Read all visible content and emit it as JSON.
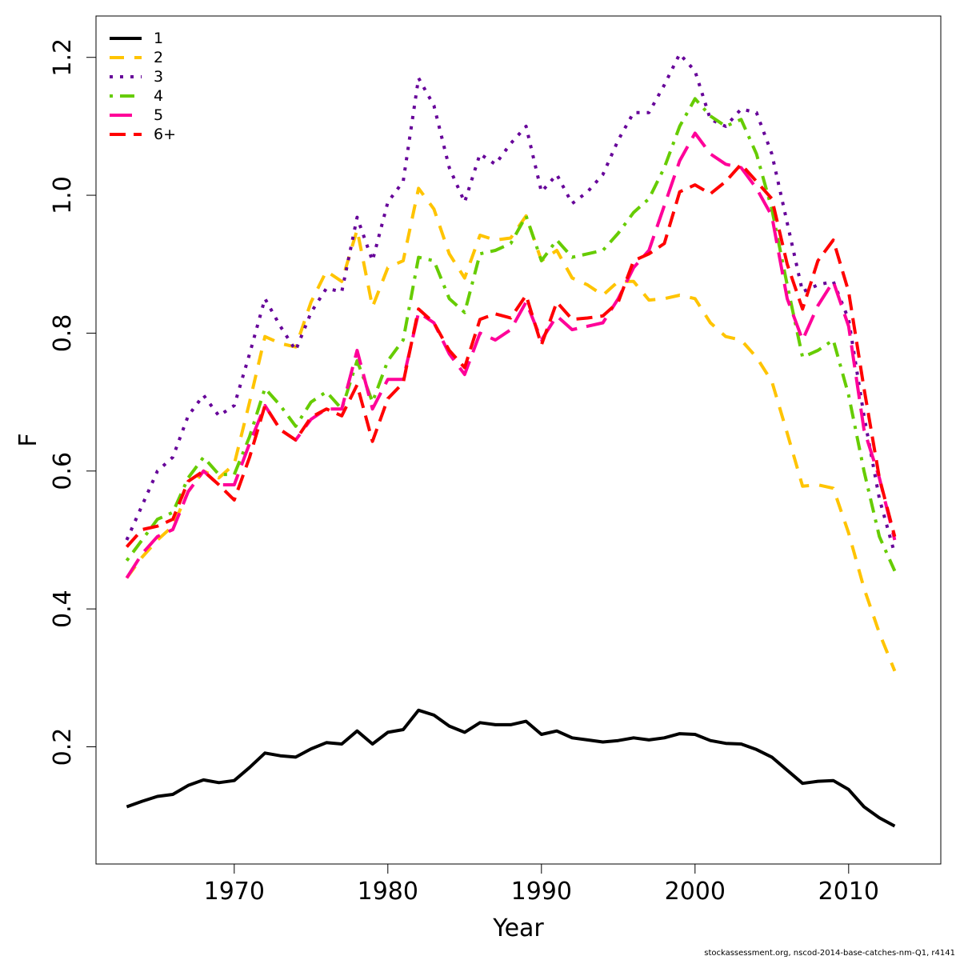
{
  "chart_data": {
    "type": "line",
    "title": "",
    "xlabel": "Year",
    "ylabel": "F",
    "xlim": [
      1961,
      2016
    ],
    "ylim": [
      0.03,
      1.26
    ],
    "xticks": [
      1970,
      1980,
      1990,
      2000,
      2010
    ],
    "yticks": [
      0.2,
      0.4,
      0.6,
      0.8,
      1.0,
      1.2
    ],
    "xtick_labels": [
      "1970",
      "1980",
      "1990",
      "2000",
      "2010"
    ],
    "ytick_labels": [
      "0.2",
      "0.4",
      "0.6",
      "0.8",
      "1.0",
      "1.2"
    ],
    "grid": false,
    "legend_position": "top-left",
    "x": [
      1963,
      1964,
      1965,
      1966,
      1967,
      1968,
      1969,
      1970,
      1971,
      1972,
      1973,
      1974,
      1975,
      1976,
      1977,
      1978,
      1979,
      1980,
      1981,
      1982,
      1983,
      1984,
      1985,
      1986,
      1987,
      1988,
      1989,
      1990,
      1991,
      1992,
      1993,
      1994,
      1995,
      1996,
      1997,
      1998,
      1999,
      2000,
      2001,
      2002,
      2003,
      2004,
      2005,
      2006,
      2007,
      2008,
      2009,
      2010,
      2011,
      2012,
      2013
    ],
    "series": [
      {
        "name": "1",
        "color": "#000000",
        "dash": "solid",
        "values": [
          0.113,
          0.121,
          0.128,
          0.131,
          0.144,
          0.152,
          0.148,
          0.151,
          0.17,
          0.191,
          0.187,
          0.185,
          0.197,
          0.206,
          0.204,
          0.223,
          0.204,
          0.221,
          0.225,
          0.253,
          0.246,
          0.23,
          0.221,
          0.235,
          0.232,
          0.232,
          0.237,
          0.218,
          0.223,
          0.213,
          0.21,
          0.207,
          0.209,
          0.213,
          0.21,
          0.213,
          0.219,
          0.218,
          0.209,
          0.205,
          0.204,
          0.196,
          0.185,
          0.166,
          0.147,
          0.15,
          0.151,
          0.138,
          0.113,
          0.097,
          0.085
        ]
      },
      {
        "name": "2",
        "color": "#FFC400",
        "dash": "long",
        "values": [
          0.445,
          0.475,
          0.5,
          0.52,
          0.57,
          0.6,
          0.59,
          0.61,
          0.7,
          0.795,
          0.785,
          0.78,
          0.845,
          0.89,
          0.875,
          0.95,
          0.838,
          0.895,
          0.905,
          1.01,
          0.98,
          0.915,
          0.88,
          0.942,
          0.935,
          0.938,
          0.97,
          0.905,
          0.92,
          0.88,
          0.87,
          0.855,
          0.875,
          0.875,
          0.848,
          0.85,
          0.855,
          0.85,
          0.815,
          0.795,
          0.79,
          0.765,
          0.73,
          0.655,
          0.578,
          0.58,
          0.575,
          0.51,
          0.43,
          0.365,
          0.31
        ]
      },
      {
        "name": "3",
        "color": "#660099",
        "dash": "dot",
        "values": [
          0.5,
          0.55,
          0.6,
          0.62,
          0.68,
          0.71,
          0.68,
          0.695,
          0.77,
          0.85,
          0.81,
          0.775,
          0.83,
          0.865,
          0.86,
          0.968,
          0.905,
          0.99,
          1.02,
          1.17,
          1.13,
          1.04,
          0.99,
          1.06,
          1.045,
          1.075,
          1.1,
          1.005,
          1.03,
          0.988,
          1.005,
          1.03,
          1.08,
          1.12,
          1.12,
          1.16,
          1.205,
          1.18,
          1.11,
          1.1,
          1.125,
          1.12,
          1.06,
          0.96,
          0.86,
          0.87,
          0.875,
          0.82,
          0.68,
          0.56,
          0.48
        ]
      },
      {
        "name": "4",
        "color": "#66CC00",
        "dash": "dotdash",
        "values": [
          0.47,
          0.5,
          0.53,
          0.54,
          0.59,
          0.62,
          0.595,
          0.595,
          0.65,
          0.72,
          0.695,
          0.665,
          0.7,
          0.715,
          0.69,
          0.76,
          0.7,
          0.76,
          0.79,
          0.91,
          0.905,
          0.85,
          0.83,
          0.915,
          0.92,
          0.93,
          0.97,
          0.905,
          0.935,
          0.91,
          0.915,
          0.92,
          0.945,
          0.975,
          0.995,
          1.04,
          1.1,
          1.14,
          1.115,
          1.1,
          1.11,
          1.06,
          0.98,
          0.87,
          0.765,
          0.775,
          0.79,
          0.71,
          0.6,
          0.505,
          0.455
        ]
      },
      {
        "name": "5",
        "color": "#FF0099",
        "dash": "longer",
        "values": [
          0.445,
          0.48,
          0.505,
          0.515,
          0.57,
          0.6,
          0.58,
          0.58,
          0.64,
          0.695,
          0.66,
          0.645,
          0.675,
          0.69,
          0.69,
          0.775,
          0.69,
          0.733,
          0.733,
          0.83,
          0.815,
          0.77,
          0.74,
          0.8,
          0.79,
          0.805,
          0.845,
          0.79,
          0.825,
          0.805,
          0.81,
          0.815,
          0.85,
          0.895,
          0.92,
          0.985,
          1.05,
          1.09,
          1.06,
          1.045,
          1.04,
          1.01,
          0.97,
          0.85,
          0.79,
          0.84,
          0.875,
          0.81,
          0.66,
          0.59,
          0.5
        ]
      },
      {
        "name": "6+",
        "color": "#FF0000",
        "dash": "medium",
        "values": [
          0.49,
          0.515,
          0.52,
          0.53,
          0.585,
          0.6,
          0.58,
          0.558,
          0.62,
          0.695,
          0.66,
          0.645,
          0.678,
          0.69,
          0.68,
          0.725,
          0.643,
          0.705,
          0.728,
          0.835,
          0.815,
          0.775,
          0.75,
          0.82,
          0.828,
          0.822,
          0.855,
          0.783,
          0.845,
          0.82,
          0.822,
          0.825,
          0.845,
          0.905,
          0.915,
          0.93,
          1.005,
          1.015,
          1.002,
          1.02,
          1.045,
          1.02,
          0.995,
          0.9,
          0.835,
          0.905,
          0.935,
          0.86,
          0.72,
          0.59,
          0.505
        ]
      }
    ]
  },
  "footer": "stockassessment.org, nscod-2014-base-catches-nm-Q1, r4141"
}
